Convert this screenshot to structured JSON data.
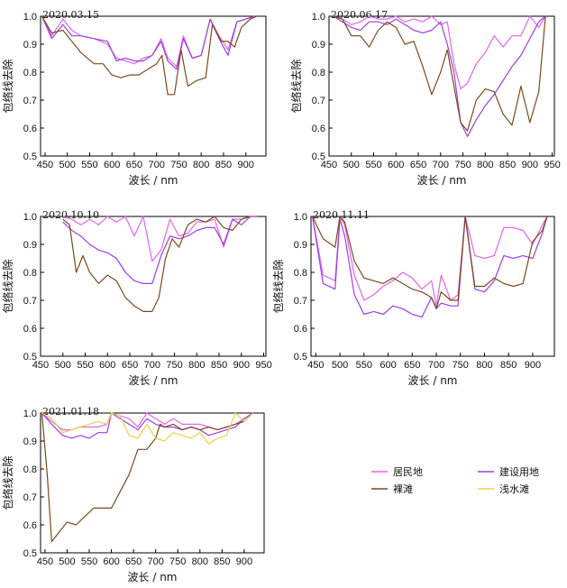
{
  "colors": {
    "居民地": "#e066f0",
    "建设用地": "#9e3ee8",
    "裸滩": "#7a4a1e",
    "浅水滩": "#e8d34a"
  },
  "legend": [
    "居民地",
    "建设用地",
    "裸滩",
    "浅水滩"
  ],
  "chart_data": [
    {
      "type": "line",
      "title": "2020.03.15",
      "xlabel": "波长 / nm",
      "ylabel": "包络线去除",
      "xlim": [
        440,
        945
      ],
      "ylim": [
        0.5,
        1.0
      ],
      "xticks": [
        450,
        500,
        550,
        600,
        650,
        700,
        750,
        800,
        850,
        900
      ],
      "yticks": [
        0.5,
        0.6,
        0.7,
        0.8,
        0.9,
        1.0
      ],
      "series": [
        {
          "name": "居民地",
          "x": [
            443,
            465,
            490,
            510,
            530,
            560,
            590,
            610,
            630,
            650,
            670,
            690,
            710,
            725,
            745,
            760,
            780,
            800,
            820,
            840,
            860,
            880,
            900,
            920
          ],
          "y": [
            1.0,
            0.93,
            0.99,
            0.95,
            0.93,
            0.92,
            0.9,
            0.85,
            0.84,
            0.83,
            0.85,
            0.86,
            0.92,
            0.85,
            0.82,
            0.93,
            0.85,
            0.86,
            0.99,
            0.93,
            0.88,
            0.98,
            0.99,
            1.0
          ]
        },
        {
          "name": "建设用地",
          "x": [
            443,
            465,
            490,
            510,
            530,
            560,
            590,
            610,
            630,
            650,
            670,
            690,
            710,
            725,
            745,
            760,
            780,
            800,
            820,
            840,
            860,
            880,
            900,
            920
          ],
          "y": [
            1.0,
            0.92,
            0.97,
            0.93,
            0.93,
            0.92,
            0.91,
            0.84,
            0.85,
            0.84,
            0.84,
            0.86,
            0.91,
            0.84,
            0.81,
            0.92,
            0.85,
            0.86,
            0.99,
            0.92,
            0.86,
            0.98,
            0.99,
            1.0
          ]
        },
        {
          "name": "裸滩",
          "x": [
            443,
            465,
            490,
            510,
            530,
            560,
            580,
            600,
            620,
            640,
            660,
            680,
            700,
            712,
            725,
            740,
            755,
            770,
            790,
            810,
            825,
            845,
            860,
            875,
            890,
            910,
            925
          ],
          "y": [
            1.0,
            0.94,
            0.95,
            0.91,
            0.87,
            0.83,
            0.83,
            0.79,
            0.78,
            0.79,
            0.79,
            0.81,
            0.83,
            0.86,
            0.72,
            0.72,
            0.88,
            0.75,
            0.77,
            0.78,
            0.97,
            0.91,
            0.91,
            0.89,
            0.96,
            0.99,
            1.0
          ]
        }
      ]
    },
    {
      "type": "line",
      "title": "2020.06.17",
      "xlabel": "波长 / nm",
      "ylabel": "包络线去除",
      "xlim": [
        450,
        955
      ],
      "ylim": [
        0.5,
        1.0
      ],
      "xticks": [
        450,
        500,
        550,
        600,
        650,
        700,
        750,
        800,
        850,
        900,
        950
      ],
      "yticks": [
        0.5,
        0.6,
        0.7,
        0.8,
        0.9,
        1.0
      ],
      "series": [
        {
          "name": "居民地",
          "x": [
            460,
            480,
            500,
            520,
            540,
            560,
            580,
            600,
            620,
            640,
            660,
            680,
            700,
            715,
            730,
            745,
            760,
            780,
            800,
            820,
            840,
            860,
            880,
            900,
            920,
            935
          ],
          "y": [
            1.0,
            0.99,
            0.97,
            0.98,
            1.0,
            0.99,
            0.99,
            1.0,
            0.98,
            0.99,
            0.98,
            1.0,
            0.97,
            0.98,
            0.83,
            0.74,
            0.76,
            0.83,
            0.87,
            0.93,
            0.89,
            0.93,
            0.93,
            1.0,
            0.96,
            1.0
          ]
        },
        {
          "name": "建设用地",
          "x": [
            460,
            480,
            500,
            520,
            540,
            560,
            580,
            600,
            620,
            640,
            660,
            680,
            700,
            715,
            730,
            745,
            760,
            780,
            800,
            820,
            840,
            860,
            880,
            900,
            920,
            935
          ],
          "y": [
            1.0,
            0.98,
            0.96,
            0.95,
            0.98,
            0.98,
            0.97,
            0.99,
            0.97,
            0.95,
            0.94,
            0.95,
            0.98,
            0.9,
            0.8,
            0.62,
            0.57,
            0.63,
            0.68,
            0.72,
            0.77,
            0.82,
            0.86,
            0.92,
            0.98,
            1.0
          ]
        },
        {
          "name": "裸滩",
          "x": [
            460,
            480,
            500,
            520,
            540,
            560,
            580,
            600,
            620,
            640,
            660,
            680,
            700,
            715,
            730,
            745,
            760,
            780,
            800,
            820,
            840,
            860,
            880,
            900,
            920,
            935
          ],
          "y": [
            1.0,
            0.99,
            0.93,
            0.93,
            0.89,
            0.95,
            0.98,
            0.96,
            0.9,
            0.91,
            0.82,
            0.72,
            0.8,
            0.88,
            0.75,
            0.62,
            0.59,
            0.7,
            0.74,
            0.73,
            0.65,
            0.61,
            0.75,
            0.62,
            0.73,
            1.0
          ]
        }
      ]
    },
    {
      "type": "line",
      "title": "2020.10.10",
      "xlabel": "波长 / nm",
      "ylabel": "包络线去除",
      "xlim": [
        450,
        955
      ],
      "ylim": [
        0.5,
        1.0
      ],
      "xticks": [
        450,
        500,
        550,
        600,
        650,
        700,
        750,
        800,
        850,
        900,
        950
      ],
      "yticks": [
        0.5,
        0.6,
        0.7,
        0.8,
        0.9,
        1.0
      ],
      "series": [
        {
          "name": "居民地",
          "x": [
            500,
            520,
            540,
            560,
            580,
            600,
            620,
            640,
            660,
            680,
            700,
            720,
            740,
            760,
            780,
            800,
            820,
            840,
            860,
            880,
            900,
            920,
            935
          ],
          "y": [
            1.0,
            0.99,
            0.97,
            0.99,
            0.97,
            1.0,
            0.98,
            1.0,
            0.93,
            1.0,
            0.84,
            0.88,
            0.99,
            0.93,
            0.94,
            0.98,
            0.98,
            0.99,
            0.89,
            0.99,
            0.99,
            1.0,
            1.0
          ]
        },
        {
          "name": "建设用地",
          "x": [
            500,
            520,
            540,
            560,
            580,
            600,
            620,
            640,
            660,
            680,
            700,
            720,
            740,
            760,
            780,
            800,
            820,
            840,
            860,
            880,
            900,
            920,
            935
          ],
          "y": [
            0.98,
            0.95,
            0.93,
            0.9,
            0.88,
            0.87,
            0.85,
            0.8,
            0.77,
            0.76,
            0.76,
            0.86,
            0.93,
            0.92,
            0.93,
            0.95,
            0.96,
            0.96,
            0.9,
            0.99,
            0.97,
            1.0,
            1.0
          ]
        },
        {
          "name": "裸滩",
          "x": [
            500,
            515,
            530,
            545,
            560,
            580,
            600,
            620,
            640,
            660,
            680,
            700,
            715,
            730,
            745,
            760,
            780,
            800,
            820,
            840,
            860,
            880,
            900,
            920
          ],
          "y": [
            0.99,
            0.97,
            0.8,
            0.86,
            0.8,
            0.76,
            0.79,
            0.77,
            0.71,
            0.68,
            0.66,
            0.66,
            0.71,
            0.85,
            0.92,
            0.89,
            0.97,
            0.99,
            0.98,
            1.0,
            0.96,
            0.95,
            0.99,
            1.0
          ]
        }
      ]
    },
    {
      "type": "line",
      "title": "2020.11.11",
      "xlabel": "波长 / nm",
      "ylabel": "包络线去除",
      "xlim": [
        440,
        945
      ],
      "ylim": [
        0.5,
        1.0
      ],
      "xticks": [
        450,
        500,
        550,
        600,
        650,
        700,
        750,
        800,
        850,
        900
      ],
      "yticks": [
        0.5,
        0.6,
        0.7,
        0.8,
        0.9,
        1.0
      ],
      "series": [
        {
          "name": "居民地",
          "x": [
            443,
            465,
            490,
            500,
            510,
            530,
            550,
            570,
            590,
            610,
            630,
            650,
            670,
            690,
            700,
            710,
            730,
            745,
            760,
            780,
            800,
            820,
            840,
            860,
            880,
            900,
            920,
            930
          ],
          "y": [
            1.0,
            0.79,
            0.77,
            1.0,
            0.97,
            0.79,
            0.7,
            0.72,
            0.75,
            0.77,
            0.8,
            0.78,
            0.74,
            0.77,
            0.68,
            0.79,
            0.7,
            0.72,
            1.0,
            0.86,
            0.85,
            0.86,
            0.96,
            0.96,
            0.95,
            0.9,
            0.97,
            1.0
          ]
        },
        {
          "name": "建设用地",
          "x": [
            443,
            465,
            490,
            500,
            510,
            530,
            550,
            570,
            590,
            610,
            630,
            650,
            670,
            690,
            700,
            710,
            730,
            745,
            760,
            780,
            800,
            820,
            840,
            860,
            880,
            900,
            920,
            930
          ],
          "y": [
            1.0,
            0.76,
            0.74,
            0.99,
            0.93,
            0.72,
            0.65,
            0.66,
            0.65,
            0.68,
            0.67,
            0.65,
            0.64,
            0.71,
            0.67,
            0.69,
            0.68,
            0.68,
            1.0,
            0.74,
            0.73,
            0.77,
            0.86,
            0.85,
            0.86,
            0.85,
            0.94,
            1.0
          ]
        },
        {
          "name": "裸滩",
          "x": [
            443,
            465,
            490,
            500,
            510,
            530,
            550,
            570,
            590,
            610,
            630,
            650,
            670,
            690,
            700,
            710,
            730,
            745,
            760,
            780,
            800,
            820,
            840,
            860,
            880,
            900,
            920,
            930
          ],
          "y": [
            1.0,
            0.92,
            0.89,
            1.0,
            0.98,
            0.84,
            0.78,
            0.77,
            0.76,
            0.78,
            0.76,
            0.74,
            0.73,
            0.71,
            0.67,
            0.73,
            0.7,
            0.7,
            1.0,
            0.75,
            0.75,
            0.78,
            0.76,
            0.75,
            0.76,
            0.91,
            0.95,
            1.0
          ]
        }
      ]
    },
    {
      "type": "line",
      "title": "2021.01.18",
      "xlabel": "波长 / nm",
      "ylabel": "包络线去除",
      "xlim": [
        440,
        945
      ],
      "ylim": [
        0.5,
        1.0
      ],
      "xticks": [
        450,
        500,
        550,
        600,
        650,
        700,
        750,
        800,
        850,
        900
      ],
      "yticks": [
        0.5,
        0.6,
        0.7,
        0.8,
        0.9,
        1.0
      ],
      "series": [
        {
          "name": "居民地",
          "x": [
            443,
            465,
            490,
            510,
            530,
            550,
            570,
            590,
            600,
            620,
            640,
            660,
            680,
            700,
            720,
            740,
            760,
            780,
            800,
            820,
            840,
            860,
            880,
            900,
            920
          ],
          "y": [
            1.0,
            0.97,
            0.94,
            0.94,
            0.95,
            0.95,
            0.95,
            0.96,
            1.0,
            0.99,
            0.98,
            0.95,
            1.0,
            0.98,
            0.96,
            0.98,
            0.96,
            0.96,
            0.96,
            0.95,
            0.94,
            0.95,
            0.96,
            0.98,
            1.0
          ]
        },
        {
          "name": "建设用地",
          "x": [
            443,
            465,
            490,
            510,
            530,
            550,
            570,
            590,
            600,
            620,
            640,
            660,
            680,
            700,
            720,
            740,
            760,
            780,
            800,
            820,
            840,
            860,
            880,
            900,
            920
          ],
          "y": [
            1.0,
            0.96,
            0.92,
            0.91,
            0.92,
            0.91,
            0.93,
            0.93,
            1.0,
            0.98,
            0.96,
            0.94,
            0.98,
            0.96,
            0.95,
            0.95,
            0.94,
            0.95,
            0.94,
            0.92,
            0.93,
            0.94,
            0.95,
            0.98,
            1.0
          ]
        },
        {
          "name": "裸滩",
          "x": [
            443,
            455,
            465,
            480,
            500,
            520,
            540,
            560,
            580,
            600,
            620,
            640,
            660,
            680,
            700,
            710,
            720,
            740,
            760,
            780,
            800,
            820,
            840,
            860,
            880,
            900,
            920
          ],
          "y": [
            1.0,
            0.78,
            0.54,
            0.57,
            0.61,
            0.6,
            0.63,
            0.66,
            0.66,
            0.66,
            0.72,
            0.78,
            0.87,
            0.87,
            0.91,
            0.96,
            0.95,
            0.96,
            0.94,
            0.95,
            0.94,
            0.95,
            0.94,
            0.95,
            0.96,
            0.97,
            1.0
          ]
        },
        {
          "name": "浅水滩",
          "x": [
            443,
            465,
            490,
            510,
            530,
            550,
            570,
            590,
            600,
            620,
            640,
            660,
            680,
            700,
            720,
            740,
            760,
            780,
            800,
            820,
            840,
            860,
            880,
            900,
            920
          ],
          "y": [
            1.0,
            0.98,
            0.93,
            0.94,
            0.95,
            0.96,
            0.97,
            0.96,
            1.0,
            0.99,
            0.92,
            0.91,
            0.96,
            0.91,
            0.9,
            0.93,
            0.92,
            0.91,
            0.93,
            0.89,
            0.91,
            0.92,
            1.0,
            0.97,
            1.0
          ]
        }
      ]
    }
  ]
}
